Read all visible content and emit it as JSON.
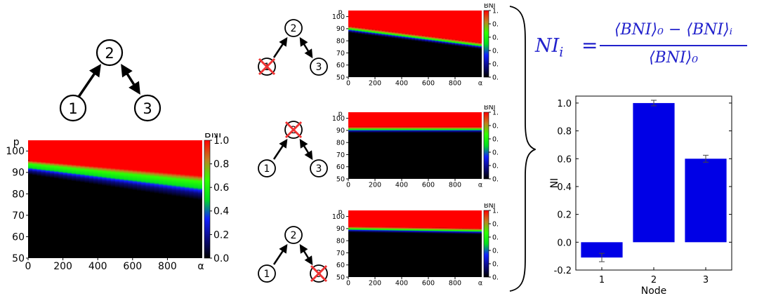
{
  "colorbar": {
    "label": "BNI",
    "ticks": [
      "1.0",
      "0.8",
      "0.6",
      "0.4",
      "0.2",
      "0.0"
    ],
    "colors": [
      "#000000",
      "#0a0a80",
      "#1020ff",
      "#00e020",
      "#30ff00",
      "#c08020",
      "#ff0000"
    ]
  },
  "heatmap_axes": {
    "y_label": "p",
    "y_ticks": [
      "100",
      "90",
      "80",
      "70",
      "60",
      "50"
    ],
    "x_ticks": [
      "0",
      "200",
      "400",
      "600",
      "800"
    ],
    "x_label": "α",
    "x_range": [
      0,
      1000
    ],
    "y_range": [
      50,
      105
    ]
  },
  "networks": {
    "main": {
      "nodes": [
        "1",
        "2",
        "3"
      ],
      "knocked_out": ""
    },
    "small1": {
      "nodes": [
        "1",
        "2",
        "3"
      ],
      "knocked_out": "1"
    },
    "small2": {
      "nodes": [
        "1",
        "2",
        "3"
      ],
      "knocked_out": "2"
    },
    "small3": {
      "nodes": [
        "1",
        "2",
        "3"
      ],
      "knocked_out": "3"
    }
  },
  "formula": {
    "lhs": "NI",
    "lhs_sub": "i",
    "equals": "=",
    "numerator": "⟨BNI⟩₀ − ⟨BNI⟩ᵢ",
    "denominator": "⟨BNI⟩₀"
  },
  "chart_data": {
    "type": "bar",
    "categories": [
      "1",
      "2",
      "3"
    ],
    "values": [
      -0.11,
      1.0,
      0.6
    ],
    "errors": [
      0.03,
      0.02,
      0.025
    ],
    "xlabel": "Node",
    "ylabel": "NI",
    "ylim": [
      -0.2,
      1.05
    ],
    "yticks": [
      "1.0",
      "0.8",
      "0.6",
      "0.4",
      "0.2",
      "0.0",
      "-0.2"
    ],
    "yticks_values": [
      1.0,
      0.8,
      0.6,
      0.4,
      0.2,
      0.0,
      -0.2
    ],
    "bar_color": "#0000e6",
    "grid": false
  }
}
